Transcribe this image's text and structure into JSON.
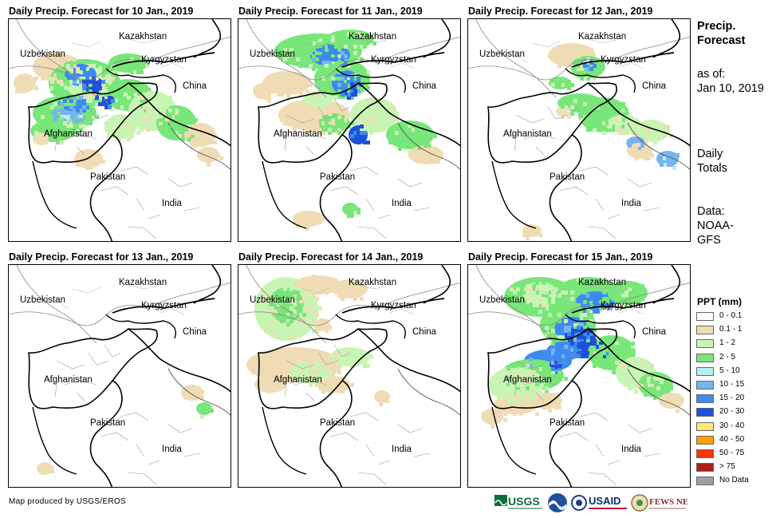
{
  "panels": [
    {
      "title": "Daily Precip. Forecast for 10 Jan., 2019",
      "day": "10"
    },
    {
      "title": "Daily Precip. Forecast for 11 Jan., 2019",
      "day": "11"
    },
    {
      "title": "Daily Precip. Forecast for 12 Jan., 2019",
      "day": "12"
    },
    {
      "title": "Daily Precip. Forecast for 13 Jan., 2019",
      "day": "13"
    },
    {
      "title": "Daily Precip. Forecast for 14 Jan., 2019",
      "day": "14"
    },
    {
      "title": "Daily Precip. Forecast for 15 Jan., 2019",
      "day": "15"
    }
  ],
  "map_labels": {
    "kazakhstan": "Kazakhstan",
    "uzbekistan": "Uzbekistan",
    "kyrgyzstan": "Kyrgyzstan",
    "china": "China",
    "afghanistan": "Afghanistan",
    "pakistan": "Pakistan",
    "india": "India"
  },
  "sidebar": {
    "heading_line1": "Precip.",
    "heading_line2": "Forecast",
    "asof_label": "as of:",
    "asof_date": "Jan 10, 2019",
    "totals_line1": "Daily",
    "totals_line2": "Totals",
    "data_line1": "Data:",
    "data_line2": "NOAA-",
    "data_line3": "GFS"
  },
  "legend": {
    "title": "PPT (mm)",
    "items": [
      {
        "label": "0 - 0.1",
        "color": "#ffffff"
      },
      {
        "label": "0.1 - 1",
        "color": "#f0dcb4"
      },
      {
        "label": "1 - 2",
        "color": "#c8f5b4"
      },
      {
        "label": "2 - 5",
        "color": "#78e678"
      },
      {
        "label": "5 - 10",
        "color": "#b4f0f0"
      },
      {
        "label": "10 - 15",
        "color": "#78b4f0"
      },
      {
        "label": "15 - 20",
        "color": "#3c8cf0"
      },
      {
        "label": "20 - 30",
        "color": "#1e50dc"
      },
      {
        "label": "30 - 40",
        "color": "#ffe678"
      },
      {
        "label": "40 - 50",
        "color": "#ffa000"
      },
      {
        "label": "50 - 75",
        "color": "#ff3200"
      },
      {
        "label": "> 75",
        "color": "#aa1e1e"
      },
      {
        "label": "No Data",
        "color": "#a0a0a0"
      }
    ]
  },
  "footer": {
    "credit": "Map produced by USGS/EROS"
  },
  "logos": {
    "usgs": "USGS",
    "usaid": "USAID",
    "fewsnet": "FEWS NET"
  }
}
